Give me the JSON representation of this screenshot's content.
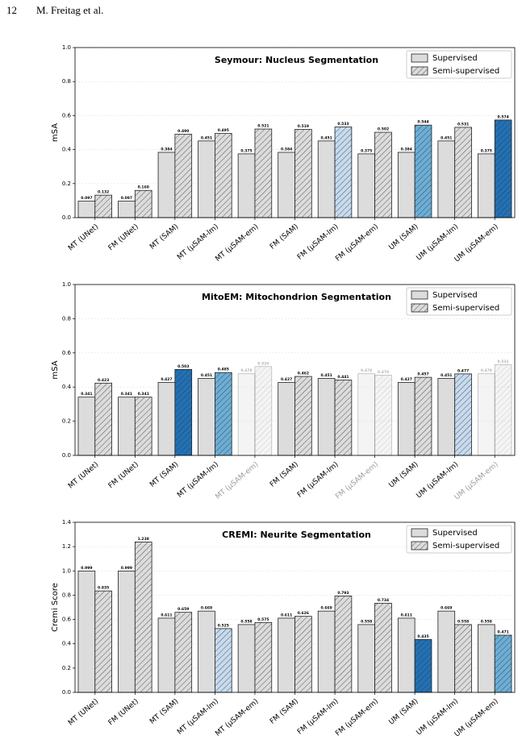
{
  "page_header": {
    "page_number": "12",
    "authors": "M. Freitag et al."
  },
  "chart_data": [
    {
      "type": "bar",
      "title": "Seymour: Nucleus Segmentation",
      "ylabel": "mSA",
      "categories": [
        "MT (UNet)",
        "FM (UNet)",
        "MT (SAM)",
        "MT (µSAM-lm)",
        "MT (µSAM-em)",
        "FM (SAM)",
        "FM (µSAM-lm)",
        "FM (µSAM-em)",
        "UM (SAM)",
        "UM (µSAM-lm)",
        "UM (µSAM-em)"
      ],
      "alpha": [
        1,
        1,
        1,
        1,
        1,
        1,
        1,
        1,
        1,
        1,
        1
      ],
      "series": [
        {
          "name": "Supervised",
          "color": "#dcdcdc",
          "hatch": false,
          "colors": [
            "#dcdcdc",
            "#dcdcdc",
            "#dcdcdc",
            "#dcdcdc",
            "#dcdcdc",
            "#dcdcdc",
            "#dcdcdc",
            "#dcdcdc",
            "#dcdcdc",
            "#dcdcdc",
            "#dcdcdc"
          ],
          "values": [
            0.097,
            0.097,
            0.384,
            0.451,
            0.375,
            0.384,
            0.451,
            0.375,
            0.384,
            0.451,
            0.375
          ],
          "value_labels": [
            "0.097",
            "0.097",
            "0.384",
            "0.451",
            "0.375",
            "0.384",
            "0.451",
            "0.375",
            "0.384",
            "0.451",
            "0.375"
          ]
        },
        {
          "name": "Semi-supervised",
          "color": "#dcdcdc",
          "hatch": true,
          "colors": [
            "#dcdcdc",
            "#dcdcdc",
            "#dcdcdc",
            "#dcdcdc",
            "#dcdcdc",
            "#dcdcdc",
            "#c6dbef",
            "#dcdcdc",
            "#6baed6",
            "#dcdcdc",
            "#2171b5"
          ],
          "values": [
            0.132,
            0.16,
            0.49,
            0.495,
            0.521,
            0.519,
            0.533,
            0.502,
            0.544,
            0.531,
            0.574
          ],
          "value_labels": [
            "0.132",
            "0.160",
            "0.490",
            "0.495",
            "0.521",
            "0.519",
            "0.533",
            "0.502",
            "0.544",
            "0.531",
            "0.574"
          ]
        }
      ],
      "ylim": [
        0,
        1
      ],
      "yticks": [
        {
          "value": 0,
          "label": "0.0"
        },
        0.2,
        0.4,
        0.6,
        0.8,
        {
          "value": 1,
          "label": "1.0"
        }
      ],
      "grid": true,
      "legend": "upper right"
    },
    {
      "type": "bar",
      "title": "MitoEM: Mitochondrion Segmentation",
      "ylabel": "mSA",
      "categories": [
        "MT (UNet)",
        "FM (UNet)",
        "MT (SAM)",
        "MT (µSAM-lm)",
        "MT (µSAM-em)",
        "FM (SAM)",
        "FM (µSAM-lm)",
        "FM (µSAM-em)",
        "UM (SAM)",
        "UM (µSAM-lm)",
        "UM (µSAM-em)"
      ],
      "alpha": [
        1,
        1,
        1,
        1,
        0.3,
        1,
        1,
        0.3,
        1,
        1,
        0.3
      ],
      "series": [
        {
          "name": "Supervised",
          "color": "#dcdcdc",
          "hatch": false,
          "colors": [
            "#dcdcdc",
            "#dcdcdc",
            "#dcdcdc",
            "#dcdcdc",
            "#dcdcdc",
            "#dcdcdc",
            "#dcdcdc",
            "#dcdcdc",
            "#dcdcdc",
            "#dcdcdc",
            "#dcdcdc"
          ],
          "values": [
            0.341,
            0.341,
            0.427,
            0.451,
            0.478,
            0.427,
            0.451,
            0.478,
            0.427,
            0.451,
            0.478
          ],
          "value_labels": [
            "0.341",
            "0.341",
            "0.427",
            "0.451",
            "0.478",
            "0.427",
            "0.451",
            "0.478",
            "0.427",
            "0.451",
            "0.478"
          ]
        },
        {
          "name": "Semi-supervised",
          "color": "#dcdcdc",
          "hatch": true,
          "colors": [
            "#dcdcdc",
            "#dcdcdc",
            "#2171b5",
            "#6baed6",
            "#dcdcdc",
            "#dcdcdc",
            "#dcdcdc",
            "#dcdcdc",
            "#dcdcdc",
            "#c6dbef",
            "#dcdcdc"
          ],
          "values": [
            0.423,
            0.341,
            0.503,
            0.485,
            0.52,
            0.462,
            0.441,
            0.47,
            0.457,
            0.477,
            0.531
          ],
          "value_labels": [
            "0.423",
            "0.341",
            "0.503",
            "0.485",
            "0.520",
            "0.462",
            "0.441",
            "0.470",
            "0.457",
            "0.477",
            "0.531"
          ]
        }
      ],
      "ylim": [
        0,
        1
      ],
      "yticks": [
        {
          "value": 0,
          "label": "0.0"
        },
        0.2,
        0.4,
        0.6,
        0.8,
        {
          "value": 1,
          "label": "1.0"
        }
      ],
      "grid": true,
      "legend": "upper right"
    },
    {
      "type": "bar",
      "title": "CREMI: Neurite Segmentation",
      "ylabel": "Cremi Score",
      "categories": [
        "MT (UNet)",
        "FM (UNet)",
        "MT (SAM)",
        "MT (µSAM-lm)",
        "MT (µSAM-em)",
        "FM (SAM)",
        "FM (µSAM-lm)",
        "FM (µSAM-em)",
        "UM (SAM)",
        "UM (µSAM-lm)",
        "UM (µSAM-em)"
      ],
      "alpha": [
        1,
        1,
        1,
        1,
        1,
        1,
        1,
        1,
        1,
        1,
        1
      ],
      "series": [
        {
          "name": "Supervised",
          "color": "#dcdcdc",
          "hatch": false,
          "colors": [
            "#dcdcdc",
            "#dcdcdc",
            "#dcdcdc",
            "#dcdcdc",
            "#dcdcdc",
            "#dcdcdc",
            "#dcdcdc",
            "#dcdcdc",
            "#dcdcdc",
            "#dcdcdc",
            "#dcdcdc"
          ],
          "values": [
            0.999,
            0.999,
            0.611,
            0.669,
            0.558,
            0.611,
            0.669,
            0.558,
            0.611,
            0.669,
            0.558
          ],
          "value_labels": [
            "0.999",
            "0.999",
            "0.611",
            "0.669",
            "0.558",
            "0.611",
            "0.669",
            "0.558",
            "0.611",
            "0.669",
            "0.558"
          ]
        },
        {
          "name": "Semi-supervised",
          "color": "#dcdcdc",
          "hatch": true,
          "colors": [
            "#dcdcdc",
            "#dcdcdc",
            "#dcdcdc",
            "#c6dbef",
            "#dcdcdc",
            "#dcdcdc",
            "#dcdcdc",
            "#dcdcdc",
            "#2171b5",
            "#dcdcdc",
            "#6baed6"
          ],
          "values": [
            0.835,
            1.238,
            0.659,
            0.525,
            0.575,
            0.626,
            0.793,
            0.734,
            0.435,
            0.558,
            0.471
          ],
          "value_labels": [
            "0.835",
            "1.238",
            "0.659",
            "0.525",
            "0.575",
            "0.626",
            "0.793",
            "0.734",
            "0.435",
            "0.558",
            "0.471"
          ]
        }
      ],
      "ylim": [
        0,
        1.4
      ],
      "yticks": [
        {
          "value": 0,
          "label": "0.0"
        },
        0.2,
        0.4,
        0.6,
        0.8,
        {
          "value": 1,
          "label": "1.0"
        },
        1.2,
        1.4
      ],
      "grid": true,
      "legend": "upper right"
    }
  ]
}
